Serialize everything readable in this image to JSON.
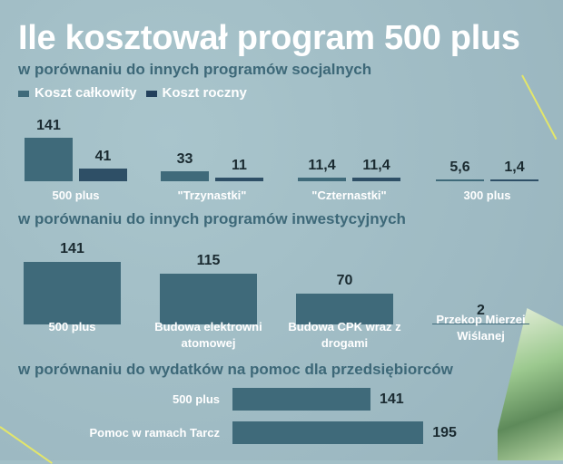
{
  "colors": {
    "total": "#3f6a7a",
    "annual": "#2e4f66",
    "background": "#a2bfc7",
    "title": "#ffffff",
    "subtitle": "#3d6878"
  },
  "title": "Ile kosztował program 500 plus",
  "chart_data": [
    {
      "type": "bar",
      "title": "w porównaniu do innych programów socjalnych",
      "legend": [
        "Koszt całkowity",
        "Koszt roczny"
      ],
      "legend_placement": "top-left",
      "categories": [
        "500 plus",
        "\"Trzynastki\"",
        "\"Czternastki\"",
        "300 plus"
      ],
      "series": [
        {
          "name": "Koszt całkowity",
          "values": [
            141,
            33,
            11.4,
            5.6
          ],
          "labels": [
            "141",
            "33",
            "11,4",
            "5,6"
          ]
        },
        {
          "name": "Koszt roczny",
          "values": [
            41,
            11,
            11.4,
            1.4
          ],
          "labels": [
            "41",
            "11",
            "11,4",
            "1,4"
          ]
        }
      ],
      "grid": false
    },
    {
      "type": "bar",
      "title": "w porównaniu do innych programów inwestycyjnych",
      "categories": [
        "500 plus",
        "Budowa elektrowni atomowej",
        "Budowa CPK wraz z drogami",
        "Przekop Mierzei Wiślanej"
      ],
      "values": [
        141,
        115,
        70,
        2
      ],
      "labels": [
        "141",
        "115",
        "70",
        "2"
      ],
      "grid": false
    },
    {
      "type": "bar",
      "orientation": "horizontal",
      "title": "w porównaniu do wydatków na pomoc dla przedsiębiorców",
      "categories": [
        "500 plus",
        "Pomoc w ramach Tarcz"
      ],
      "values": [
        141,
        195
      ],
      "labels": [
        "141",
        "195"
      ],
      "grid": false
    }
  ]
}
